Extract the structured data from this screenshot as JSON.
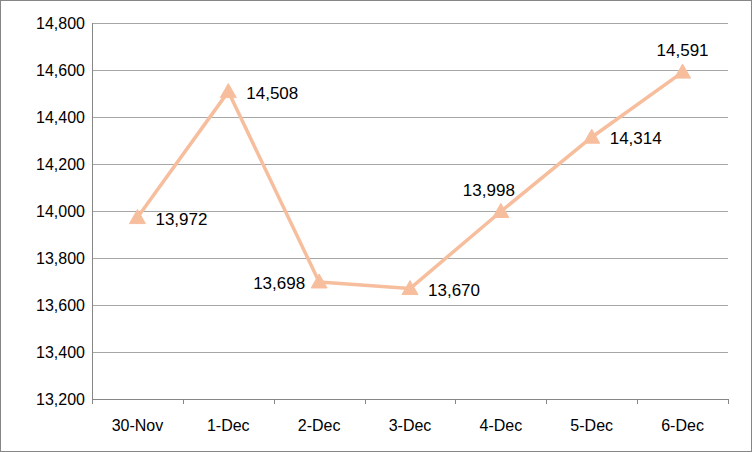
{
  "chart_data": {
    "type": "line",
    "categories": [
      "30-Nov",
      "1-Dec",
      "2-Dec",
      "3-Dec",
      "4-Dec",
      "5-Dec",
      "6-Dec"
    ],
    "values": [
      13972,
      14508,
      13698,
      13670,
      13998,
      14314,
      14591
    ],
    "value_labels": [
      "13,972",
      "14,508",
      "13,698",
      "13,670",
      "13,998",
      "14,314",
      "14,591"
    ],
    "color": "#f7be9e",
    "marker": "triangle",
    "line_style": "solid",
    "ylim": [
      13200,
      14800
    ],
    "yticks": [
      {
        "value": 13200,
        "label": "13,200"
      },
      {
        "value": 13400,
        "label": "13,400"
      },
      {
        "value": 13600,
        "label": "13,600"
      },
      {
        "value": 13800,
        "label": "13,800"
      },
      {
        "value": 14000,
        "label": "14,000"
      },
      {
        "value": 14200,
        "label": "14,200"
      },
      {
        "value": 14400,
        "label": "14,400"
      },
      {
        "value": 14600,
        "label": "14,600"
      },
      {
        "value": 14800,
        "label": "14,800"
      }
    ],
    "grid": true,
    "data_labels": true
  }
}
